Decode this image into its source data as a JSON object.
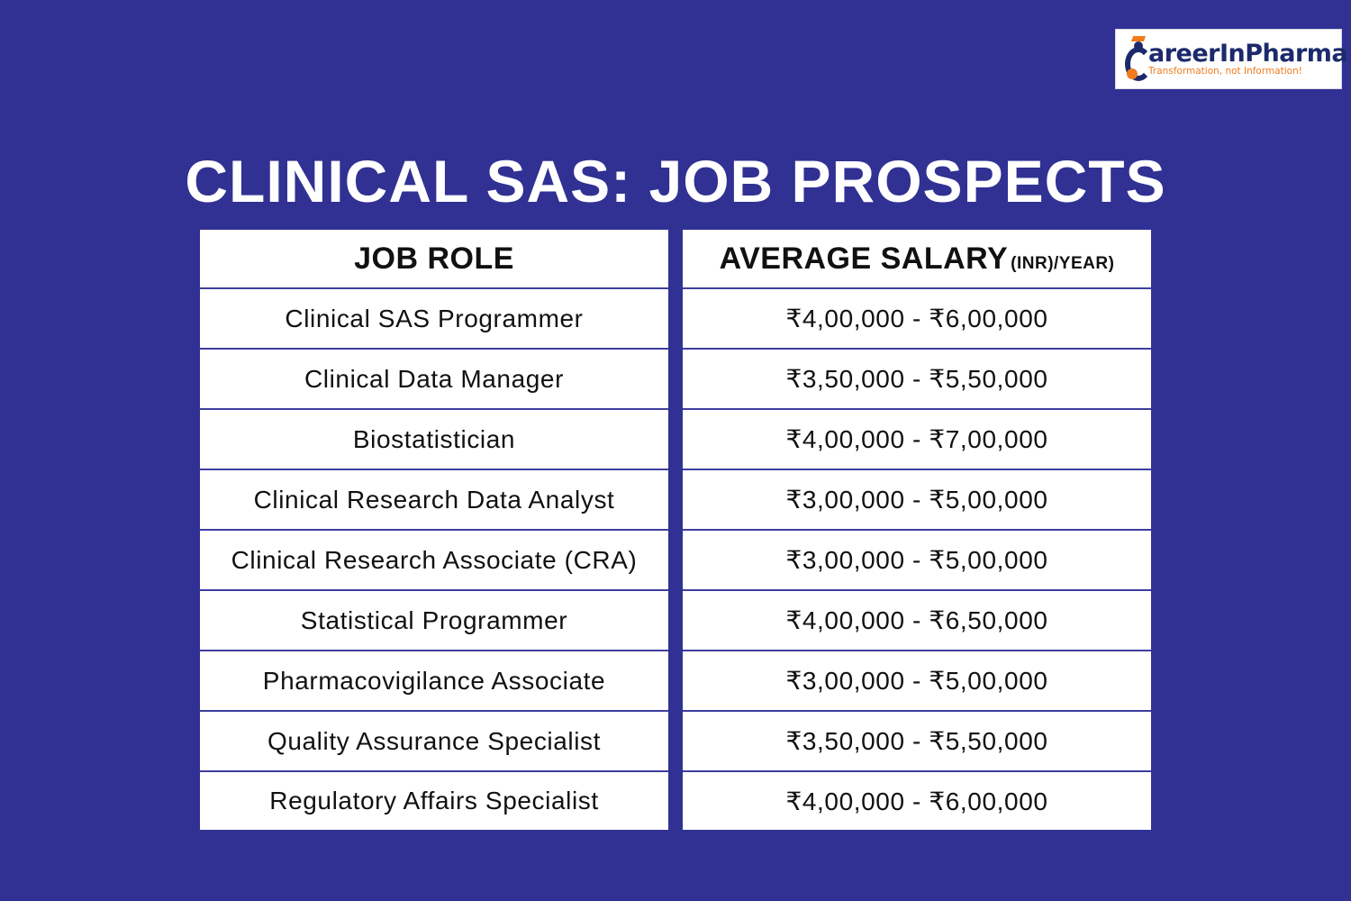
{
  "logo": {
    "name": "areerInPharma",
    "tagline": "Transformation, not Information!",
    "icon": "graduate-c-icon",
    "colors": {
      "navy": "#1c2a6b",
      "orange": "#f07c1e"
    }
  },
  "title": "CLINICAL SAS: JOB PROSPECTS",
  "table": {
    "headers": {
      "role": "JOB ROLE",
      "salary": "AVERAGE SALARY",
      "salary_unit": "(INR)/YEAR)"
    },
    "rows": [
      {
        "role": "Clinical SAS Programmer",
        "salary": "₹4,00,000 - ₹6,00,000"
      },
      {
        "role": "Clinical Data Manager",
        "salary": "₹3,50,000 - ₹5,50,000"
      },
      {
        "role": "Biostatistician",
        "salary": "₹4,00,000 - ₹7,00,000"
      },
      {
        "role": "Clinical Research Data Analyst",
        "salary": "₹3,00,000 - ₹5,00,000"
      },
      {
        "role": "Clinical Research Associate (CRA)",
        "salary": "₹3,00,000 - ₹5,00,000"
      },
      {
        "role": "Statistical Programmer",
        "salary": "₹4,00,000 - ₹6,50,000"
      },
      {
        "role": "Pharmacovigilance Associate",
        "salary": "₹3,00,000 - ₹5,00,000"
      },
      {
        "role": "Quality Assurance Specialist",
        "salary": "₹3,50,000 - ₹5,50,000"
      },
      {
        "role": "Regulatory Affairs Specialist",
        "salary": "₹4,00,000 - ₹6,00,000"
      }
    ]
  },
  "colors": {
    "background": "#303193",
    "cell": "#ffffff",
    "divider": "#3d3f9e"
  }
}
